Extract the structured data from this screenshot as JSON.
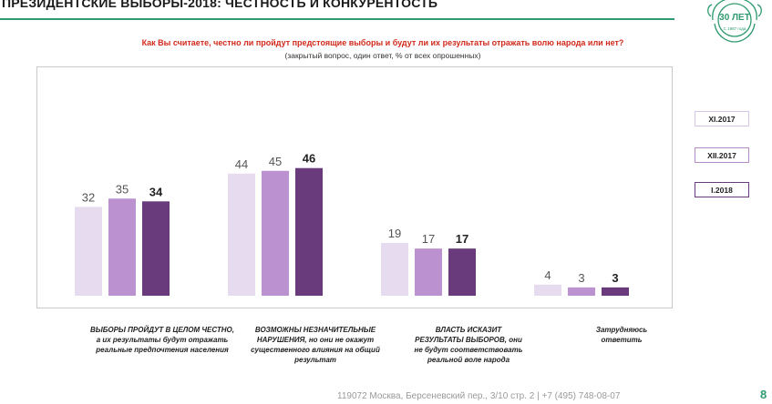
{
  "header": {
    "title": "ПРЕЗИДЕНТСКИЕ ВЫБОРЫ-2018: ЧЕСТНОСТЬ И КОНКУРЕНТОСТЬ",
    "logo_text": "30 ЛЕТ",
    "logo_sub": "С 1987 года"
  },
  "question": "Как Вы считаете, честно ли пройдут предстоящие выборы и будут ли их результаты отражать волю народа или нет?",
  "question_note": "(закрытый вопрос, один ответ, % от всех опрошенных)",
  "chart_data": {
    "type": "bar",
    "categories": [
      {
        "line1": "ВЫБОРЫ ПРОЙДУТ В ЦЕЛОМ ЧЕСТНО,",
        "line2": "а их результаты будут отражать",
        "line3": "реальные предпочтения населения",
        "line4": ""
      },
      {
        "line1": "ВОЗМОЖНЫ НЕЗНАЧИТЕЛЬНЫЕ",
        "line2": "НАРУШЕНИЯ, но они не окажут",
        "line3": "существенного влияния на общий",
        "line4": "результат"
      },
      {
        "line1": "ВЛАСТЬ ИСКАЗИТ",
        "line2": "РЕЗУЛЬТАТЫ ВЫБОРОВ, они",
        "line3": "не будут соответствовать",
        "line4": "реальной воле народа"
      },
      {
        "line1": "Затрудняюсь",
        "line2": "ответить",
        "line3": "",
        "line4": ""
      }
    ],
    "series": [
      {
        "name": "XI.2017",
        "color": "#e7dcef",
        "values": [
          32,
          44,
          19,
          4
        ]
      },
      {
        "name": "XII.2017",
        "color": "#bb92cf",
        "values": [
          35,
          45,
          17,
          3
        ]
      },
      {
        "name": "I.2018",
        "color": "#6a3b7c",
        "values": [
          34,
          46,
          17,
          3
        ]
      }
    ],
    "ylim": [
      0,
      50
    ],
    "legend": "right"
  },
  "footer": {
    "address": "119072 Москва, Берсеневский пер., 3/10 стр. 2  |  +7 (495) 748-08-07",
    "page": "8"
  }
}
